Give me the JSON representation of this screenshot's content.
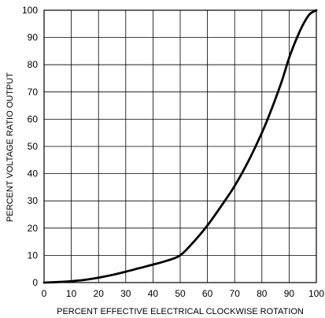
{
  "chart_data": {
    "type": "line",
    "title": "",
    "xlabel": "PERCENT EFFECTIVE ELECTRICAL CLOCKWISE ROTATION",
    "ylabel": "PERCENT VOLTAGE RATIO OUTPUT",
    "xlim": [
      0,
      100
    ],
    "ylim": [
      0,
      100
    ],
    "x_ticks": [
      "0",
      "10",
      "20",
      "30",
      "40",
      "50",
      "60",
      "70",
      "80",
      "90",
      "100"
    ],
    "y_ticks": [
      "0",
      "10",
      "20",
      "30",
      "40",
      "50",
      "60",
      "70",
      "80",
      "90",
      "100"
    ],
    "grid": true,
    "legend": "none",
    "series": [
      {
        "x": [
          0,
          5,
          10,
          15,
          20,
          25,
          30,
          35,
          40,
          45,
          50,
          55,
          60,
          65,
          70,
          75,
          80,
          82.5,
          85,
          87.5,
          90,
          92.5,
          95,
          97.5,
          100
        ],
        "y": [
          0,
          0.2,
          0.5,
          1.0,
          1.8,
          2.8,
          4.0,
          5.3,
          6.6,
          8.0,
          10.0,
          15.0,
          21.0,
          28.0,
          35.5,
          44.5,
          55.0,
          61.0,
          67.5,
          74.5,
          82.5,
          89.0,
          94.5,
          98.5,
          100
        ]
      }
    ]
  },
  "style": {
    "line_color": "#000000",
    "grid_color": "#000000",
    "background": "#ffffff"
  }
}
